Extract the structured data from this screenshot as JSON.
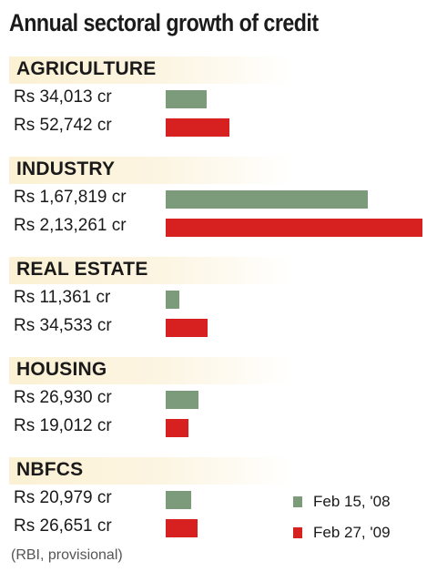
{
  "chart_data": {
    "type": "bar",
    "orientation": "horizontal",
    "title": "Annual sectoral growth of credit",
    "categories": [
      "AGRICULTURE",
      "INDUSTRY",
      "REAL ESTATE",
      "HOUSING",
      "NBFCS"
    ],
    "series": [
      {
        "name": "Feb 15, '08",
        "color": "#7b9b7b",
        "values": [
          34013,
          167819,
          11361,
          26930,
          20979
        ],
        "labels": [
          "Rs 34,013 cr",
          "Rs 1,67,819 cr",
          "Rs 11,361 cr",
          "Rs 26,930 cr",
          "Rs 20,979 cr"
        ]
      },
      {
        "name": "Feb 27, '09",
        "color": "#d72020",
        "values": [
          52742,
          213261,
          34533,
          19012,
          26651
        ],
        "labels": [
          "Rs 52,742 cr",
          "Rs 2,13,261 cr",
          "Rs 34,533 cr",
          "Rs 19,012 cr",
          "Rs 26,651 cr"
        ]
      }
    ],
    "xlim": [
      0,
      213261
    ],
    "grid": false,
    "legend": "bottom-right",
    "source": "(RBI, provisional)"
  }
}
